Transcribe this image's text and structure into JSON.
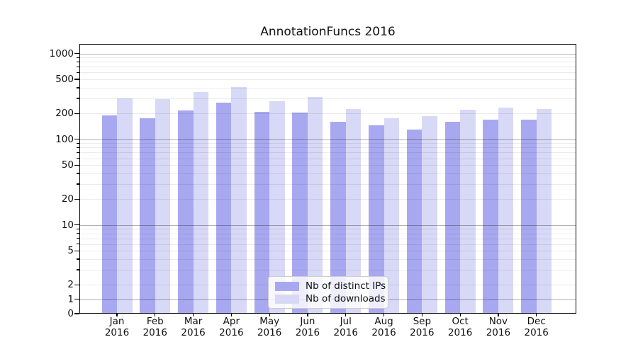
{
  "chart_data": {
    "type": "bar",
    "title": "AnnotationFuncs 2016",
    "xlabel": "",
    "ylabel": "",
    "categories": [
      "Jan\n2016",
      "Feb\n2016",
      "Mar\n2016",
      "Apr\n2016",
      "May\n2016",
      "Jun\n2016",
      "Jul\n2016",
      "Aug\n2016",
      "Sep\n2016",
      "Oct\n2016",
      "Nov\n2016",
      "Dec\n2016"
    ],
    "series": [
      {
        "name": "Nb of distinct IPs",
        "color": "#a8a8f0",
        "values": [
          190,
          175,
          215,
          265,
          210,
          205,
          160,
          145,
          130,
          160,
          170,
          170
        ]
      },
      {
        "name": "Nb of downloads",
        "color": "#d8d8f7",
        "values": [
          300,
          295,
          355,
          405,
          280,
          310,
          225,
          175,
          185,
          220,
          235,
          225
        ]
      }
    ],
    "yscale": "symlog",
    "linthresh": 2,
    "ylim": [
      0,
      1300
    ],
    "yticks": [
      1000,
      500,
      200,
      100,
      50,
      20,
      10,
      5,
      2,
      1,
      0
    ],
    "yticklabels": [
      "1000",
      "500",
      "200",
      "100",
      "50",
      "20",
      "10",
      "5",
      "2",
      "1",
      "0"
    ],
    "major_decades": [
      1,
      10,
      100,
      1000
    ],
    "grid": true,
    "legend_position": "lower-center",
    "colors": {
      "grid_major": "rgba(0,0,0,0.30)",
      "grid_minor": "rgba(0,0,0,0.08)",
      "spine": "#000000",
      "background": "#ffffff"
    }
  }
}
